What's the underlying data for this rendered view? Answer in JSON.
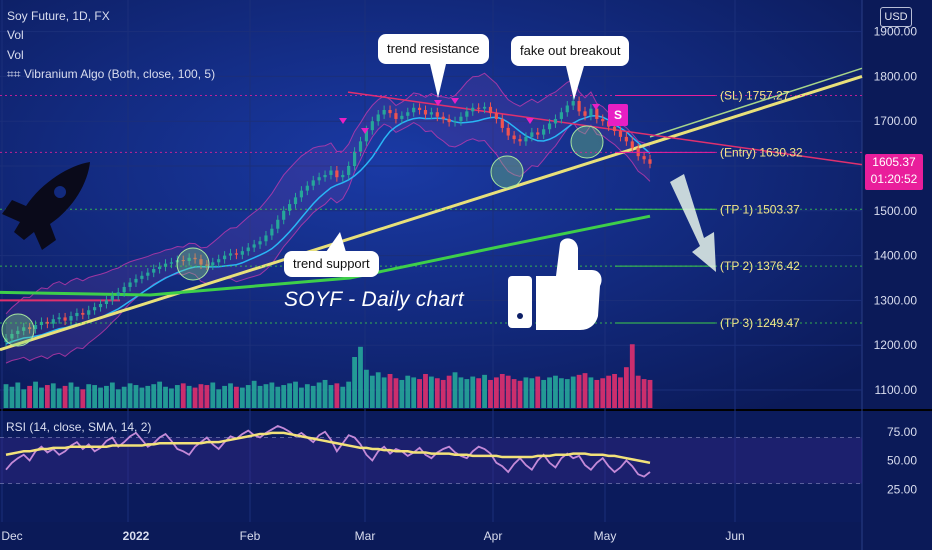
{
  "header": {
    "symbol": "Soy Future, 1D, FX",
    "vol1": "Vol",
    "vol2": "Vol",
    "indicator": "⌗⌗ Vibranium Algo (Both, close, 100, 5)"
  },
  "currency_button": "USD",
  "last_price": {
    "value": "1605.37",
    "countdown": "01:20:52"
  },
  "annotations": {
    "trend_resistance": "trend resistance",
    "fake_out_breakout": "fake out breakout",
    "trend_support": "trend support",
    "watermark": "SOYF - Daily chart",
    "signal_badge": "S"
  },
  "trade_levels": [
    {
      "label": "(SL) 1757.27",
      "value": 1757.27
    },
    {
      "label": "(Entry) 1630.32",
      "value": 1630.32
    },
    {
      "label": "(TP 1) 1503.37",
      "value": 1503.37
    },
    {
      "label": "(TP 2) 1376.42",
      "value": 1376.42
    },
    {
      "label": "(TP 3) 1249.47",
      "value": 1249.47
    }
  ],
  "colors": {
    "background": "#0d1f66",
    "up_candle": "#26a69a",
    "down_candle": "#ef5350",
    "trendline_support": "#e8e07a",
    "trendline_resistance": "#e0306e",
    "green_line": "#3ecf4a",
    "highlight": "#e91e9b"
  },
  "chart_data": [
    {
      "type": "candlestick",
      "title": "Soy Future, 1D, FX",
      "x_tick_labels": [
        "Dec",
        "2022",
        "Feb",
        "Mar",
        "Apr",
        "May",
        "Jun"
      ],
      "y_tick_labels": [
        "1100.00",
        "1200.00",
        "1300.00",
        "1400.00",
        "1500.00",
        "1600.00",
        "1700.00",
        "1800.00",
        "1900.00"
      ],
      "ylim": [
        1070,
        1940
      ],
      "close_series": [
        1215,
        1225,
        1232,
        1240,
        1236,
        1245,
        1252,
        1248,
        1258,
        1262,
        1255,
        1265,
        1272,
        1268,
        1278,
        1285,
        1292,
        1300,
        1310,
        1318,
        1330,
        1340,
        1348,
        1355,
        1362,
        1370,
        1375,
        1382,
        1385,
        1390,
        1388,
        1395,
        1392,
        1380,
        1378,
        1385,
        1392,
        1400,
        1405,
        1402,
        1410,
        1418,
        1425,
        1432,
        1445,
        1460,
        1480,
        1500,
        1515,
        1530,
        1545,
        1556,
        1568,
        1575,
        1580,
        1590,
        1575,
        1580,
        1600,
        1632,
        1655,
        1680,
        1700,
        1715,
        1725,
        1718,
        1705,
        1712,
        1720,
        1730,
        1725,
        1715,
        1720,
        1710,
        1705,
        1698,
        1700,
        1710,
        1722,
        1730,
        1728,
        1732,
        1718,
        1705,
        1685,
        1668,
        1660,
        1655,
        1665,
        1675,
        1670,
        1682,
        1695,
        1705,
        1720,
        1735,
        1745,
        1722,
        1712,
        1728,
        1705,
        1700,
        1688,
        1678,
        1665,
        1655,
        1640,
        1622,
        1615,
        1605
      ],
      "volume_series": [
        28,
        25,
        30,
        22,
        26,
        31,
        24,
        27,
        29,
        23,
        26,
        30,
        25,
        22,
        28,
        27,
        24,
        26,
        30,
        22,
        25,
        29,
        27,
        24,
        26,
        28,
        31,
        25,
        23,
        27,
        29,
        26,
        24,
        28,
        27,
        30,
        22,
        26,
        29,
        25,
        24,
        27,
        32,
        26,
        28,
        30,
        25,
        27,
        29,
        31,
        24,
        28,
        26,
        30,
        33,
        27,
        29,
        25,
        31,
        60,
        72,
        45,
        38,
        42,
        36,
        40,
        35,
        33,
        38,
        36,
        34,
        40,
        37,
        35,
        33,
        38,
        42,
        36,
        34,
        37,
        35,
        39,
        33,
        36,
        40,
        38,
        34,
        32,
        36,
        35,
        37,
        33,
        36,
        38,
        35,
        34,
        37,
        39,
        41,
        36,
        33,
        35,
        38,
        40,
        36,
        48,
        75,
        38,
        34,
        33
      ],
      "annotations": [
        "trend resistance",
        "fake out breakout",
        "trend support",
        "SOYF - Daily chart"
      ]
    },
    {
      "type": "line",
      "title": "RSI (14, close, SMA, 14, 2)",
      "y_tick_labels": [
        "25.00",
        "50.00",
        "75.00"
      ],
      "ylim": [
        20,
        85
      ],
      "series": [
        {
          "name": "RSI",
          "values": [
            42,
            48,
            52,
            55,
            50,
            58,
            62,
            57,
            60,
            55,
            58,
            63,
            66,
            60,
            64,
            58,
            61,
            67,
            70,
            62,
            66,
            71,
            74,
            68,
            62,
            65,
            70,
            73,
            67,
            60,
            58,
            55,
            62,
            66,
            70,
            64,
            60,
            66,
            71,
            69,
            73,
            76,
            72,
            70,
            74,
            77,
            80,
            78,
            75,
            71,
            74,
            70,
            66,
            72,
            75,
            68,
            58,
            65,
            72,
            70,
            64,
            55,
            50,
            58,
            62,
            56,
            60,
            58,
            54,
            57,
            61,
            55,
            52,
            57,
            60,
            62,
            57,
            54,
            52,
            58,
            62,
            60,
            56,
            48,
            45,
            40,
            47,
            52,
            46,
            42,
            50,
            55,
            48,
            44,
            52,
            56,
            52,
            54,
            46,
            42,
            48,
            52,
            45,
            40,
            44,
            50,
            45,
            38,
            36,
            40
          ]
        },
        {
          "name": "SMA",
          "values": [
            55,
            56,
            57,
            58,
            58,
            59,
            60,
            60,
            61,
            61,
            61,
            62,
            62,
            62,
            62,
            62,
            62,
            62,
            63,
            63,
            63,
            63,
            63,
            63,
            64,
            64,
            65,
            65,
            65,
            65,
            65,
            65,
            65,
            65,
            66,
            66,
            66,
            67,
            68,
            69,
            70,
            71,
            72,
            73,
            73,
            74,
            74,
            74,
            73,
            72,
            71,
            70,
            69,
            68,
            67,
            66,
            65,
            64,
            63,
            62,
            61,
            61,
            60,
            60,
            59,
            59,
            58,
            58,
            58,
            57,
            57,
            57,
            56,
            56,
            56,
            56,
            55,
            55,
            55,
            54,
            54,
            54,
            54,
            54,
            53,
            53,
            53,
            53,
            53,
            53,
            54,
            54,
            54,
            55,
            55,
            55,
            56,
            56,
            56,
            55,
            55,
            55,
            54,
            54,
            53,
            52,
            51,
            50,
            49,
            48
          ]
        }
      ],
      "hlines": [
        70,
        30
      ]
    }
  ]
}
